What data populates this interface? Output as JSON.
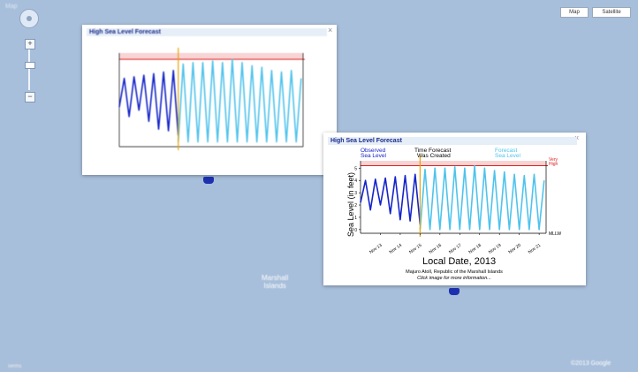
{
  "map": {
    "title": "Map",
    "zoom_in": "+",
    "zoom_out": "−",
    "map_type_buttons": [
      "Map",
      "Satellite"
    ],
    "island_label": [
      "Marshall",
      "Islands"
    ],
    "attribution": "©2013 Google",
    "terms": "Terms"
  },
  "panel_small": {
    "title": "High Sea Level Forecast",
    "close": "×"
  },
  "panel_large": {
    "title": "High Sea Level Forecast",
    "close": "×",
    "observed_label": [
      "Observed",
      "Sea Level"
    ],
    "time_label": [
      "Time Forecast",
      "Was Created"
    ],
    "forecast_label": [
      "Forecast",
      "Sea Level"
    ],
    "very_high_label": [
      "Very",
      "High"
    ],
    "mllw_label": "MLLW",
    "ylabel": "Sea Level (in feet)",
    "xlabel": "Local Date, 2013",
    "location": "Majuro Atoll, Republic of the Marshall Islands",
    "hint": "Click image for more information..."
  },
  "chart_data": [
    {
      "type": "line",
      "ylabel": "Sea Level (in feet)",
      "xlabel": "Local Date, 2013",
      "x_tick_labels": [
        "Nov 13",
        "Nov 14",
        "Nov 15",
        "Nov 16",
        "Nov 17",
        "Nov 18",
        "Nov 19",
        "Nov 20",
        "Nov 21"
      ],
      "y_ticks": [
        0,
        1,
        2,
        3,
        4,
        5
      ],
      "ylim": [
        -0.3,
        5.6
      ],
      "very_high_threshold": 5.2,
      "forecast_created_day": 15.0,
      "series": [
        {
          "name": "Observed Sea Level",
          "color": "#1424c8",
          "days": [
            12.0,
            12.25,
            12.5,
            12.75,
            13.0,
            13.25,
            13.5,
            13.75,
            14.0,
            14.25,
            14.5,
            14.75,
            15.0
          ],
          "values": [
            2.2,
            4.0,
            1.6,
            4.1,
            2.0,
            4.2,
            1.3,
            4.3,
            0.8,
            4.4,
            0.7,
            4.5,
            0.4
          ]
        },
        {
          "name": "Forecast Sea Level",
          "color": "#4fc3ec",
          "days": [
            15.0,
            15.25,
            15.5,
            15.75,
            16.0,
            16.25,
            16.5,
            16.75,
            17.0,
            17.25,
            17.5,
            17.75,
            18.0,
            18.25,
            18.5,
            18.75,
            19.0,
            19.25,
            19.5,
            19.75,
            20.0,
            20.25,
            20.5,
            20.75,
            21.0,
            21.25
          ],
          "values": [
            0.0,
            4.9,
            0.0,
            5.0,
            0.0,
            5.0,
            0.0,
            5.1,
            0.0,
            5.0,
            0.0,
            5.2,
            0.0,
            5.0,
            0.0,
            4.8,
            0.0,
            4.7,
            0.0,
            4.5,
            0.0,
            4.4,
            0.0,
            4.5,
            0.0,
            4.0
          ]
        }
      ]
    }
  ]
}
